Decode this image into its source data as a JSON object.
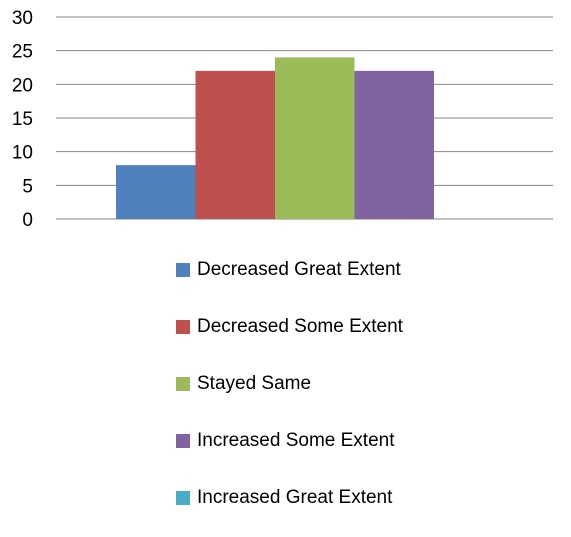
{
  "chart_data": {
    "type": "bar",
    "series": [
      {
        "name": "Decreased Great Extent",
        "value": 8,
        "color": "#4F81BD"
      },
      {
        "name": "Decreased Some Extent",
        "value": 22,
        "color": "#C0504D"
      },
      {
        "name": "Stayed Same",
        "value": 24,
        "color": "#9BBB59"
      },
      {
        "name": "Increased Some Extent",
        "value": 22,
        "color": "#8064A2"
      },
      {
        "name": "Increased Great Extent",
        "value": 0,
        "color": "#4BACC6"
      }
    ],
    "yticks": [
      "0",
      "5",
      "10",
      "15",
      "20",
      "25",
      "30"
    ],
    "ylim": [
      0,
      30
    ],
    "grid": true,
    "legend_position": "bottom"
  }
}
